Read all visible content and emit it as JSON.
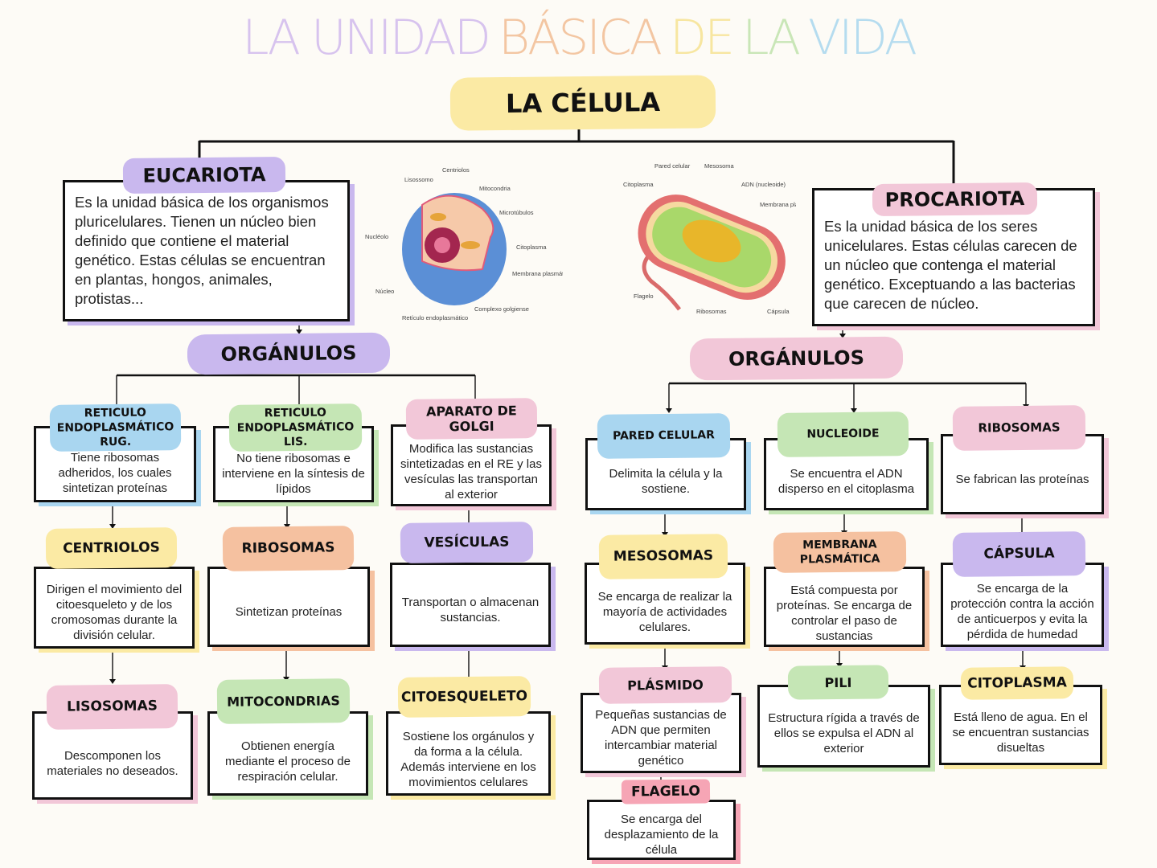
{
  "title": {
    "words": [
      "LA UNIDAD",
      "BÁSICA",
      "DE",
      "LA",
      "VIDA"
    ],
    "colors": [
      "#d7c3ee",
      "#f3c6a2",
      "#f7e6a0",
      "#c9e6b7",
      "#b5dcef"
    ]
  },
  "root": {
    "title": "LA CÉLULA",
    "color": "#fbeaa4"
  },
  "eucariota": {
    "title": "EUCARIOTA",
    "text": "Es la unidad básica de los organismos pluricelulares. Tienen un núcleo bien definido que contiene el material genético. Estas células se encuentran en plantas, hongos, animales, protistas...",
    "color": "#c9b8ee"
  },
  "procariota": {
    "title": "PROCARIOTA",
    "text": "Es la unidad básica de los seres unicelulares. Estas células carecen de un núcleo que contenga el material genético. Exceptuando a las bacterias que carecen de núcleo.",
    "color": "#f2c7d8"
  },
  "organulos_left": {
    "title": "ORGÁNULOS"
  },
  "organulos_right": {
    "title": "ORGÁNULOS"
  },
  "eukaryotic_image_labels": [
    "Centriolos",
    "Lisossomo",
    "Mitocondria",
    "Microtúbulos",
    "Nucléolo",
    "Citoplasma",
    "Membrana plasmática",
    "Núcleo",
    "Complexo golgiense",
    "Retículo endoplasmático"
  ],
  "prokaryotic_image_labels": [
    "Pared celular",
    "Mesosoma",
    "Citoplasma",
    "ADN (nucleoide)",
    "Membrana plasmática",
    "Flagelo",
    "Ribosomas",
    "Cápsula"
  ],
  "nodes": {
    "rer": {
      "title": "RETICULO ENDOPLASMÁTICO RUG.",
      "text": "Tiene ribosomas adheridos, los cuales sintetizan proteínas"
    },
    "rel": {
      "title": "RETICULO ENDOPLASMÁTICO LIS.",
      "text": "No tiene ribosomas e interviene en la síntesis de lípidos"
    },
    "golgi": {
      "title": "APARATO DE GOLGI",
      "text": "Modifica las sustancias sintetizadas en el RE y las vesículas las transportan al exterior"
    },
    "centriolos": {
      "title": "CENTRIOLOS",
      "text": "Dirigen el movimiento del citoesqueleto y de los cromosomas durante la división celular."
    },
    "ribosomas_e": {
      "title": "RIBOSOMAS",
      "text": "Sintetizan proteínas"
    },
    "vesiculas": {
      "title": "VESÍCULAS",
      "text": "Transportan o almacenan sustancias."
    },
    "lisosomas": {
      "title": "LISOSOMAS",
      "text": "Descomponen los materiales no deseados."
    },
    "mitocondrias": {
      "title": "MITOCONDRIAS",
      "text": "Obtienen energía mediante el proceso de respiración celular."
    },
    "citoesqueleto": {
      "title": "CITOESQUELETO",
      "text": "Sostiene los orgánulos y da forma a la célula. Además interviene en los movimientos celulares"
    },
    "pared": {
      "title": "PARED CELULAR",
      "text": "Delimita la célula y la sostiene."
    },
    "nucleoide": {
      "title": "NUCLEOIDE",
      "text": "Se encuentra el ADN disperso en el citoplasma"
    },
    "ribosomas_p": {
      "title": "RIBOSOMAS",
      "text": "Se fabrican las proteínas"
    },
    "mesosomas": {
      "title": "MESOSOMAS",
      "text": "Se encarga de realizar la mayoría de actividades celulares."
    },
    "membrana": {
      "title": "MEMBRANA PLASMÁTICA",
      "text": "Está compuesta por proteínas. Se encarga de controlar el paso de sustancias"
    },
    "capsula": {
      "title": "CÁPSULA",
      "text": "Se encarga de la protección contra la acción de anticuerpos y evita la pérdida de humedad"
    },
    "plasmido": {
      "title": "PLÁSMIDO",
      "text": "Pequeñas sustancias de ADN que permiten intercambiar material genético"
    },
    "pili": {
      "title": "PILI",
      "text": "Estructura rígida a través de ellos se expulsa el ADN al exterior"
    },
    "citoplasma": {
      "title": "CITOPLASMA",
      "text": "Está lleno de agua. En el se encuentran sustancias disueltas"
    },
    "flagelo": {
      "title": "FLAGELO",
      "text": "Se encarga del desplazamiento de la célula"
    }
  },
  "palette": {
    "blue": "#a9d6f0",
    "green": "#c5e6b5",
    "pink": "#f2c7d8",
    "yellow": "#fbeaa4",
    "orange": "#f5c1a0",
    "lavender": "#c9b8ee",
    "red": "#f6a5b5"
  }
}
